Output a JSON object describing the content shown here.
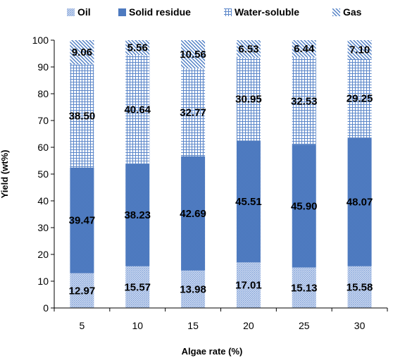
{
  "chart_data": {
    "type": "bar",
    "stacked": true,
    "categories": [
      "5",
      "10",
      "15",
      "20",
      "25",
      "30"
    ],
    "series": [
      {
        "name": "Oil",
        "values": [
          12.97,
          15.57,
          13.98,
          17.01,
          15.13,
          15.58
        ]
      },
      {
        "name": "Solid residue",
        "values": [
          39.47,
          38.23,
          42.69,
          45.51,
          45.9,
          48.07
        ]
      },
      {
        "name": "Water-soluble",
        "values": [
          38.5,
          40.64,
          32.77,
          30.95,
          32.53,
          29.25
        ]
      },
      {
        "name": "Gas",
        "values": [
          9.06,
          5.56,
          10.56,
          6.53,
          6.44,
          7.1
        ]
      }
    ],
    "data_labels": [
      [
        "12.97",
        "15.57",
        "13.98",
        "17.01",
        "15.13",
        "15.58"
      ],
      [
        "39.47",
        "38.23",
        "42.69",
        "45.51",
        "45.90",
        "48.07"
      ],
      [
        "38.50",
        "40.64",
        "32.77",
        "30.95",
        "32.53",
        "29.25"
      ],
      [
        "9.06",
        "5.56",
        "10.56",
        "6.53",
        "6.44",
        "7.10"
      ]
    ],
    "xlabel": "Algae rate (%)",
    "ylabel": "Yield (wt%)",
    "ylim": [
      0,
      100
    ],
    "yticks": [
      0,
      10,
      20,
      30,
      40,
      50,
      60,
      70,
      80,
      90,
      100
    ],
    "legend_position": "top",
    "grid": false,
    "colors": {
      "Oil": "#a9bfe3",
      "Solid residue": "#4f7ec4",
      "Water-soluble": "#6a93d0",
      "Gas": "#5b86c9"
    }
  }
}
